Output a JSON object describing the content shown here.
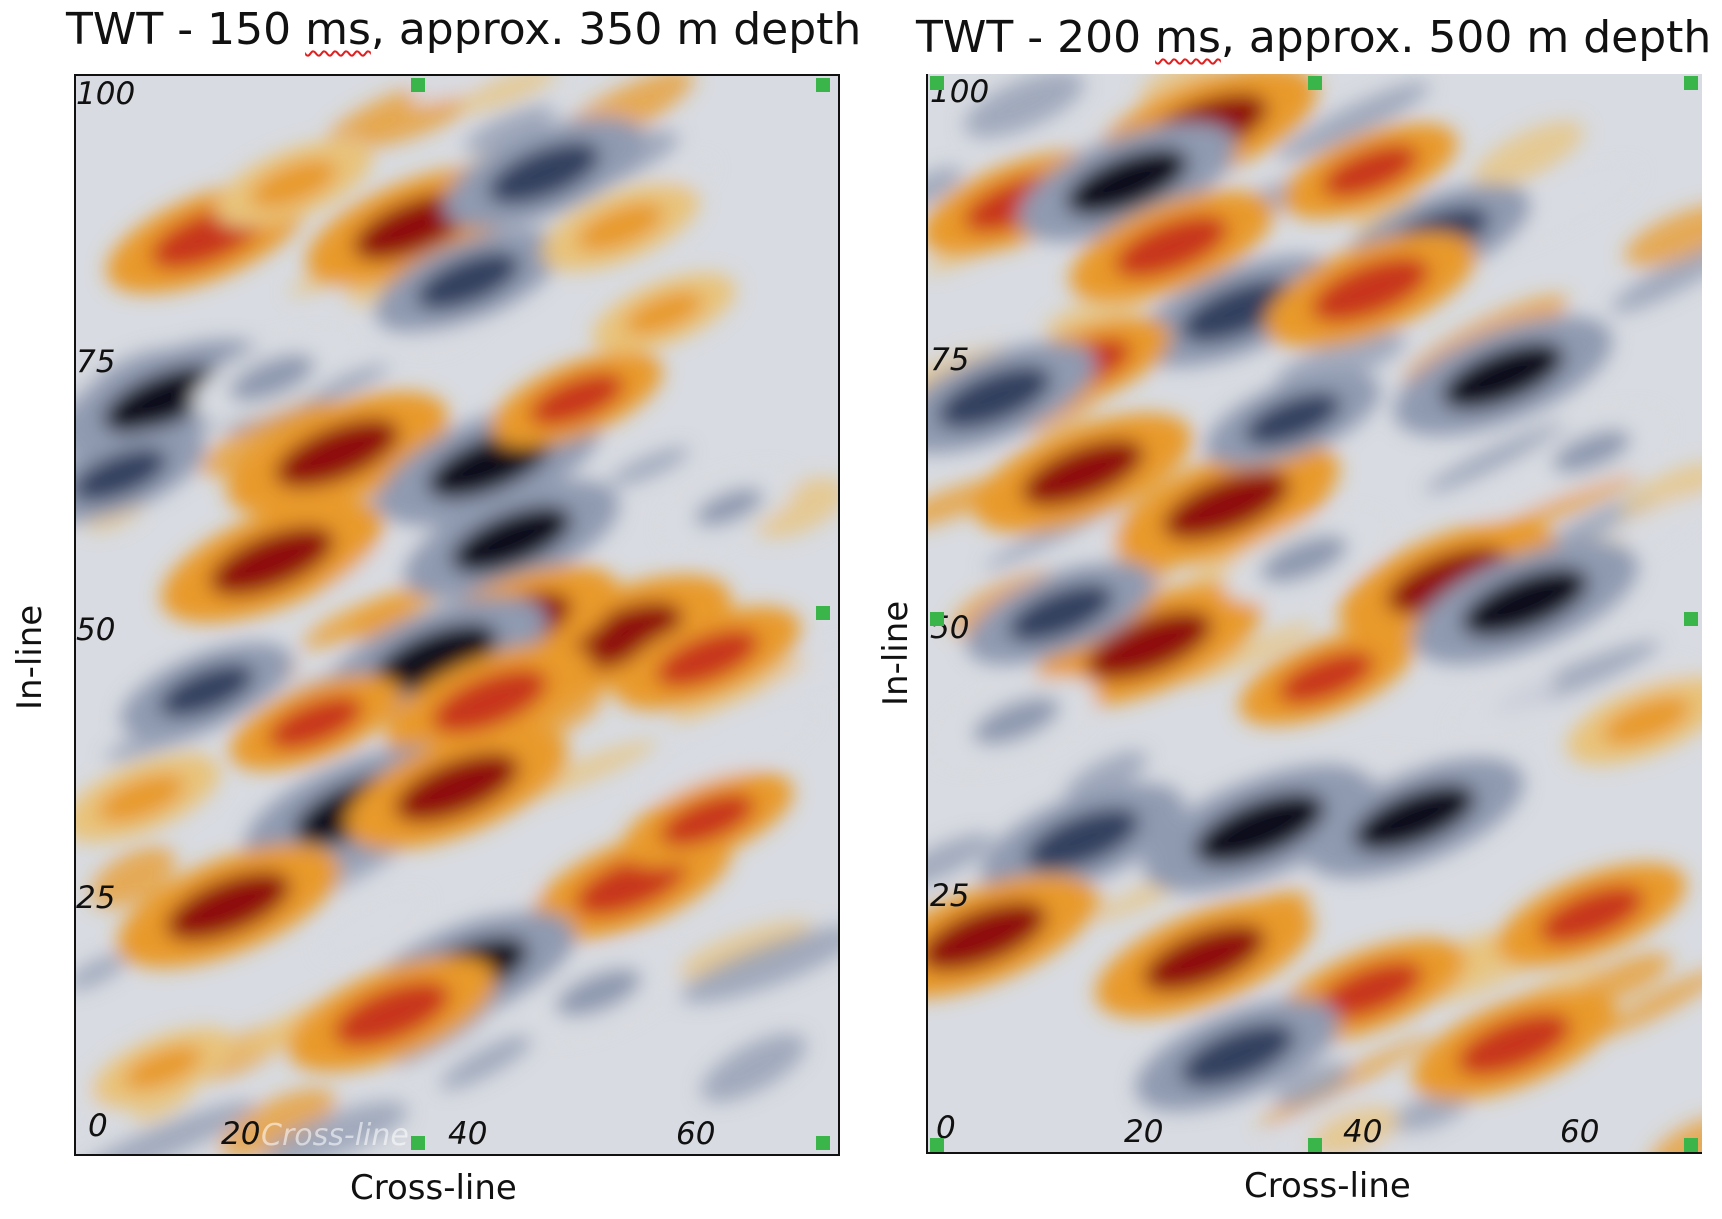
{
  "chart_data": [
    {
      "type": "heatmap",
      "title": "TWT - 150 ms, approx. 350 m depth",
      "title_parts": [
        "TWT - 150 ",
        "ms",
        ", approx. 350 m depth"
      ],
      "xlabel": "Cross-line",
      "ylabel": "In-line",
      "xlim": [
        0,
        70
      ],
      "ylim": [
        0,
        100
      ],
      "x_ticks": [
        "20",
        "40",
        "60"
      ],
      "y_ticks": [
        "0",
        "25",
        "50",
        "75",
        "100"
      ],
      "faint_overlay_text": "Cross-line",
      "colormap": [
        "#0b0f1c",
        "#30405f",
        "#8f9ab0",
        "#d8dbe1",
        "#e8c37a",
        "#e89a2a",
        "#c8351d",
        "#8f0e0e"
      ],
      "anomalies": [
        {
          "x": 12,
          "y": 85,
          "v": 0.8
        },
        {
          "x": 20,
          "y": 90,
          "v": 0.5
        },
        {
          "x": 31,
          "y": 86,
          "v": 0.9
        },
        {
          "x": 43,
          "y": 91,
          "v": -0.8
        },
        {
          "x": 36,
          "y": 81,
          "v": -0.7
        },
        {
          "x": 50,
          "y": 86,
          "v": 0.5
        },
        {
          "x": 8,
          "y": 70,
          "v": -0.9
        },
        {
          "x": 4,
          "y": 63,
          "v": -0.6
        },
        {
          "x": 24,
          "y": 65,
          "v": 0.95
        },
        {
          "x": 38,
          "y": 64,
          "v": -0.95
        },
        {
          "x": 46,
          "y": 70,
          "v": 0.6
        },
        {
          "x": 18,
          "y": 72,
          "v": -0.5
        },
        {
          "x": 18,
          "y": 55,
          "v": 0.95
        },
        {
          "x": 40,
          "y": 57,
          "v": -0.9
        },
        {
          "x": 50,
          "y": 48,
          "v": 0.95
        },
        {
          "x": 40,
          "y": 49,
          "v": 0.9
        },
        {
          "x": 33,
          "y": 46,
          "v": -0.95
        },
        {
          "x": 12,
          "y": 43,
          "v": -0.6
        },
        {
          "x": 58,
          "y": 46,
          "v": 0.7
        },
        {
          "x": 38,
          "y": 42,
          "v": 0.85
        },
        {
          "x": 26,
          "y": 32,
          "v": -1.0
        },
        {
          "x": 35,
          "y": 34,
          "v": 0.95
        },
        {
          "x": 14,
          "y": 23,
          "v": 0.95
        },
        {
          "x": 51,
          "y": 25,
          "v": 0.8
        },
        {
          "x": 58,
          "y": 31,
          "v": 0.6
        },
        {
          "x": 36,
          "y": 17,
          "v": -0.9
        },
        {
          "x": 29,
          "y": 13,
          "v": 0.85
        },
        {
          "x": 48,
          "y": 15,
          "v": -0.5
        },
        {
          "x": 8,
          "y": 8,
          "v": 0.4
        },
        {
          "x": 60,
          "y": 60,
          "v": -0.3
        },
        {
          "x": 22,
          "y": 40,
          "v": 0.6
        },
        {
          "x": 6,
          "y": 33,
          "v": 0.5
        },
        {
          "x": 54,
          "y": 78,
          "v": 0.4
        }
      ]
    },
    {
      "type": "heatmap",
      "title": "TWT - 200 ms, approx. 500 m depth",
      "title_parts": [
        "TWT - 200 ",
        "ms",
        ", approx. 500 m depth"
      ],
      "xlabel": "Cross-line",
      "ylabel": "In-line",
      "xlim": [
        0,
        70
      ],
      "ylim": [
        0,
        100
      ],
      "x_ticks": [
        "20",
        "40",
        "60"
      ],
      "y_ticks": [
        "0",
        "25",
        "50",
        "75",
        "100"
      ],
      "faint_overlay_text": "",
      "colormap": [
        "#0b0f1c",
        "#30405f",
        "#8f9ab0",
        "#d8dbe1",
        "#e8c37a",
        "#e89a2a",
        "#c8351d",
        "#8f0e0e"
      ],
      "anomalies": [
        {
          "x": 25,
          "y": 95,
          "v": 0.95
        },
        {
          "x": 8,
          "y": 88,
          "v": 0.7
        },
        {
          "x": 18,
          "y": 90,
          "v": -0.9
        },
        {
          "x": 22,
          "y": 84,
          "v": 0.8
        },
        {
          "x": 40,
          "y": 91,
          "v": 0.6
        },
        {
          "x": 46,
          "y": 85,
          "v": -0.7
        },
        {
          "x": 28,
          "y": 78,
          "v": -0.8
        },
        {
          "x": 40,
          "y": 80,
          "v": 0.85
        },
        {
          "x": 52,
          "y": 72,
          "v": -0.9
        },
        {
          "x": 14,
          "y": 73,
          "v": 0.6
        },
        {
          "x": 6,
          "y": 70,
          "v": -0.8
        },
        {
          "x": 14,
          "y": 63,
          "v": 0.9
        },
        {
          "x": 27,
          "y": 60,
          "v": 0.95
        },
        {
          "x": 33,
          "y": 68,
          "v": -0.6
        },
        {
          "x": 47,
          "y": 53,
          "v": 0.9
        },
        {
          "x": 54,
          "y": 51,
          "v": -0.95
        },
        {
          "x": 20,
          "y": 47,
          "v": 0.95
        },
        {
          "x": 12,
          "y": 50,
          "v": -0.7
        },
        {
          "x": 36,
          "y": 44,
          "v": 0.6
        },
        {
          "x": 65,
          "y": 40,
          "v": 0.5
        },
        {
          "x": 30,
          "y": 30,
          "v": -1.0
        },
        {
          "x": 44,
          "y": 31,
          "v": -0.9
        },
        {
          "x": 14,
          "y": 29,
          "v": -0.8
        },
        {
          "x": 5,
          "y": 20,
          "v": 0.95
        },
        {
          "x": 25,
          "y": 18,
          "v": 0.9
        },
        {
          "x": 40,
          "y": 15,
          "v": 0.7
        },
        {
          "x": 53,
          "y": 10,
          "v": 0.8
        },
        {
          "x": 28,
          "y": 9,
          "v": -0.8
        },
        {
          "x": 60,
          "y": 22,
          "v": 0.7
        },
        {
          "x": 60,
          "y": 65,
          "v": -0.4
        },
        {
          "x": 34,
          "y": 55,
          "v": -0.5
        },
        {
          "x": 8,
          "y": 40,
          "v": -0.5
        }
      ]
    }
  ]
}
